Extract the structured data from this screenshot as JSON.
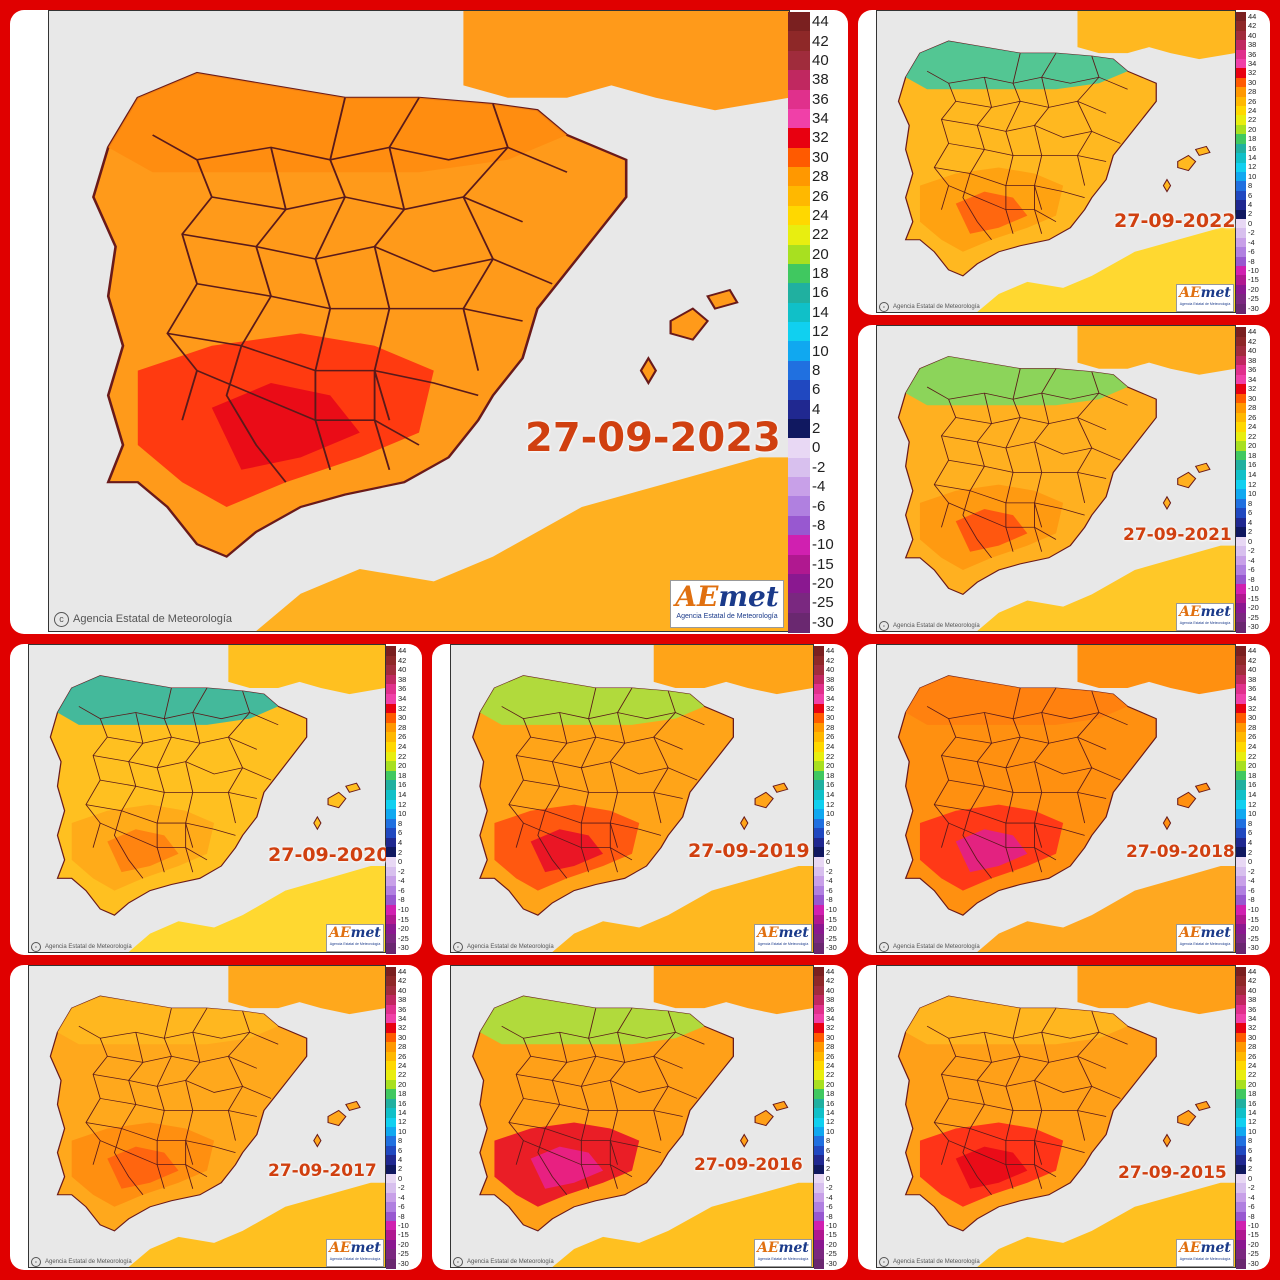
{
  "scale": {
    "labels": [
      "44",
      "42",
      "40",
      "38",
      "36",
      "34",
      "32",
      "30",
      "28",
      "26",
      "24",
      "22",
      "20",
      "18",
      "16",
      "14",
      "12",
      "10",
      "8",
      "6",
      "4",
      "2",
      "0",
      "-2",
      "-4",
      "-6",
      "-8",
      "-10",
      "-15",
      "-20",
      "-25",
      "-30"
    ],
    "colors": [
      "#7a2020",
      "#8e2828",
      "#a02c3c",
      "#c02860",
      "#e0308c",
      "#f040a8",
      "#e80010",
      "#ff5a00",
      "#ff9800",
      "#ffb800",
      "#ffd800",
      "#e8ee10",
      "#a8e020",
      "#40c860",
      "#20b0a0",
      "#10c0c8",
      "#10d0f0",
      "#10a8f0",
      "#2070e0",
      "#2048c0",
      "#202890",
      "#101860",
      "#e8d8f4",
      "#d8c0ee",
      "#c8a0e8",
      "#b080e0",
      "#9858d0",
      "#d020b0",
      "#b01890",
      "#8a1890",
      "#7a2880",
      "#6a2870"
    ]
  },
  "credit_text": "Agencia Estatal de Meteorología",
  "logo": {
    "word_a": "AE",
    "word_b": "met",
    "sub": "Agencia Estatal de Meteorología"
  },
  "panels": [
    {
      "id": "2023",
      "date": "27-09-2023",
      "base": "#ff9a1a",
      "north": "#ff8c10",
      "south": "#ff3010",
      "hot": "#e80818",
      "sea_land": "#ffb020"
    },
    {
      "id": "2022",
      "date": "27-09-2022",
      "base": "#ffb820",
      "north": "#40c8a0",
      "south": "#ffa010",
      "hot": "#ff6010",
      "sea_land": "#ffd830"
    },
    {
      "id": "2021",
      "date": "27-09-2021",
      "base": "#ffb020",
      "north": "#80d860",
      "south": "#ff9810",
      "hot": "#ff5010",
      "sea_land": "#ffc828"
    },
    {
      "id": "2020",
      "date": "27-09-2020",
      "base": "#ffc020",
      "north": "#30b8a8",
      "south": "#ffa818",
      "hot": "#ff8010",
      "sea_land": "#ffd830"
    },
    {
      "id": "2019",
      "date": "27-09-2019",
      "base": "#ffa418",
      "north": "#a8e040",
      "south": "#ff5010",
      "hot": "#e81028",
      "sea_land": "#ffb820"
    },
    {
      "id": "2018",
      "date": "27-09-2018",
      "base": "#ff9010",
      "north": "#ff8010",
      "south": "#ff3018",
      "hot": "#e0208c",
      "sea_land": "#ffa820"
    },
    {
      "id": "2017",
      "date": "27-09-2017",
      "base": "#ffa81c",
      "north": "#ffb820",
      "south": "#ff8c10",
      "hot": "#ff6010",
      "sea_land": "#ffc020"
    },
    {
      "id": "2016",
      "date": "27-09-2016",
      "base": "#ffa018",
      "north": "#a8e040",
      "south": "#e81028",
      "hot": "#e8208c",
      "sea_land": "#ffc020"
    },
    {
      "id": "2015",
      "date": "27-09-2015",
      "base": "#ffa018",
      "north": "#ffb820",
      "south": "#ff2818",
      "hot": "#e80818",
      "sea_land": "#ffc020"
    }
  ]
}
